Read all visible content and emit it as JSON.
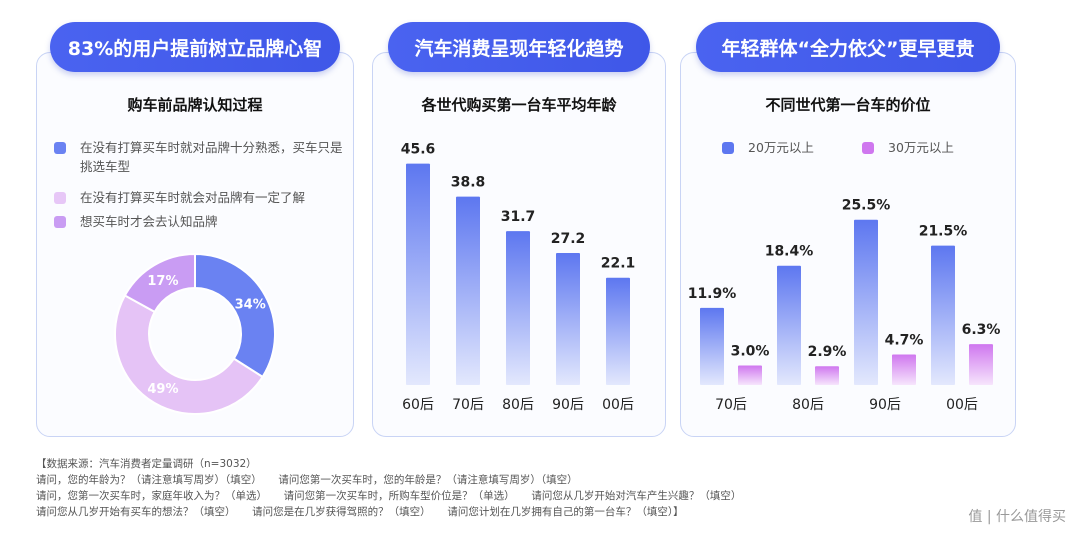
{
  "panel1": {
    "title": "83%的用户提前树立品牌心智",
    "subtitle": "购车前品牌认知过程",
    "legend": [
      {
        "label": "在没有打算买车时就对品牌十分熟悉，买车只是挑选车型",
        "color": "#6a82f2"
      },
      {
        "label": "在没有打算买车时就会对品牌有一定了解",
        "color": "#e7c7f7"
      },
      {
        "label": "想买车时才会去认知品牌",
        "color": "#c99cf3"
      }
    ]
  },
  "panel2": {
    "title": "汽车消费呈现年轻化趋势",
    "subtitle": "各世代购买第一台车平均年龄"
  },
  "panel3": {
    "title": "年轻群体“全力依父”更早更贵",
    "subtitle": "不同世代第一台车的价位"
  },
  "chart_data": [
    {
      "type": "pie",
      "title": "购车前品牌认知过程",
      "labels": [
        "在没有打算买车时就对品牌十分熟悉，买车只是挑选车型",
        "在没有打算买车时就会对品牌有一定了解",
        "想买车时才会去认知品牌"
      ],
      "values": [
        34,
        49,
        17
      ],
      "value_labels": [
        "34%",
        "49%",
        "17%"
      ],
      "colors": [
        "#6a82f2",
        "#e5c3f6",
        "#c99cf3"
      ]
    },
    {
      "type": "bar",
      "title": "各世代购买第一台车平均年龄",
      "categories": [
        "60后",
        "70后",
        "80后",
        "90后",
        "00后"
      ],
      "values": [
        45.6,
        38.8,
        31.7,
        27.2,
        22.1
      ],
      "value_labels": [
        "45.6",
        "38.8",
        "31.7",
        "27.2",
        "22.1"
      ],
      "ylim": [
        0,
        48
      ],
      "colors": [
        "#5d77f0",
        "#dfe5fc"
      ]
    },
    {
      "type": "bar",
      "title": "不同世代第一台车的价位",
      "categories": [
        "70后",
        "80后",
        "90后",
        "00后"
      ],
      "series": [
        {
          "name": "20万元以上",
          "values": [
            11.9,
            18.4,
            25.5,
            21.5
          ],
          "value_labels": [
            "11.9%",
            "18.4%",
            "25.5%",
            "21.5%"
          ],
          "color": "#5d77f0"
        },
        {
          "name": "30万元以上",
          "values": [
            3.0,
            2.9,
            4.7,
            6.3
          ],
          "value_labels": [
            "3.0%",
            "2.9%",
            "4.7%",
            "6.3%"
          ],
          "color": "#cf77ef"
        }
      ],
      "ylim": [
        0,
        27
      ],
      "legend": "top"
    }
  ],
  "footnote": {
    "lines": [
      "【数据来源：汽车消费者定量调研（n=3032）",
      "请问，您的年龄为？（请注意填写周岁）（填空）     请问您第一次买车时，您的年龄是？（请注意填写周岁）（填空）",
      "请问，您第一次买车时，家庭年收入为？（单选）     请问您第一次买车时，所购车型价位是？（单选）     请问您从几岁开始对汽车产生兴趣？（填空）",
      "请问您从几岁开始有买车的想法？（填空）     请问您是在几岁获得驾照的？（填空）     请问您计划在几岁拥有自己的第一台车？（填空）】"
    ]
  },
  "watermark": "值 | 什么值得买"
}
